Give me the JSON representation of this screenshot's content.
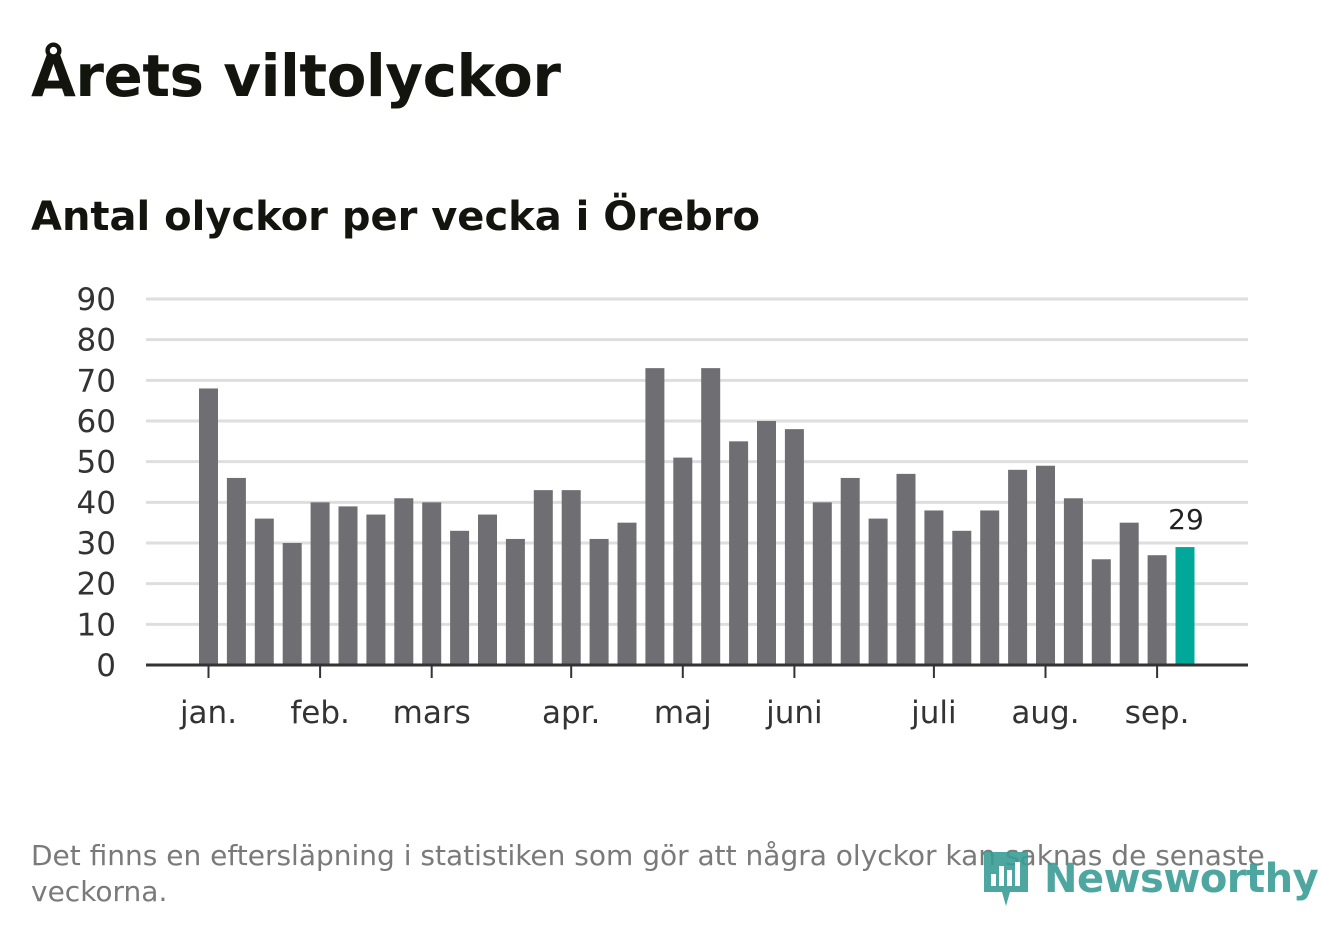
{
  "title": "Årets viltolyckor",
  "subtitle": "Antal olyckor per vecka i Örebro",
  "footnote": "Det finns en eftersläpning i statistiken som gör att några olyckor kan saknas de senaste veckorna.",
  "logo": {
    "text": "Newsworthy",
    "icon": "newsworthy-logo-icon"
  },
  "colors": {
    "bar": "#6f6f73",
    "highlight": "#00a89a",
    "grid": "#dedede",
    "axis": "#333333"
  },
  "chart_data": {
    "type": "bar",
    "title": "Antal olyckor per vecka i Örebro",
    "xlabel": "",
    "ylabel": "",
    "ylim": [
      0,
      90
    ],
    "yticks": [
      0,
      10,
      20,
      30,
      40,
      50,
      60,
      70,
      80,
      90
    ],
    "grid": true,
    "legend": "none",
    "month_labels": [
      {
        "label": "jan.",
        "week_index": 0
      },
      {
        "label": "feb.",
        "week_index": 4
      },
      {
        "label": "mars",
        "week_index": 8
      },
      {
        "label": "apr.",
        "week_index": 13
      },
      {
        "label": "maj",
        "week_index": 17
      },
      {
        "label": "juni",
        "week_index": 21
      },
      {
        "label": "juli",
        "week_index": 26
      },
      {
        "label": "aug.",
        "week_index": 30
      },
      {
        "label": "sep.",
        "week_index": 34
      }
    ],
    "values": [
      68,
      46,
      36,
      30,
      40,
      39,
      37,
      41,
      40,
      33,
      37,
      31,
      43,
      43,
      31,
      35,
      73,
      51,
      73,
      55,
      60,
      58,
      40,
      46,
      36,
      47,
      38,
      33,
      38,
      48,
      49,
      41,
      26,
      35,
      27,
      29
    ],
    "highlight_index": 35,
    "highlight_label": "29"
  }
}
